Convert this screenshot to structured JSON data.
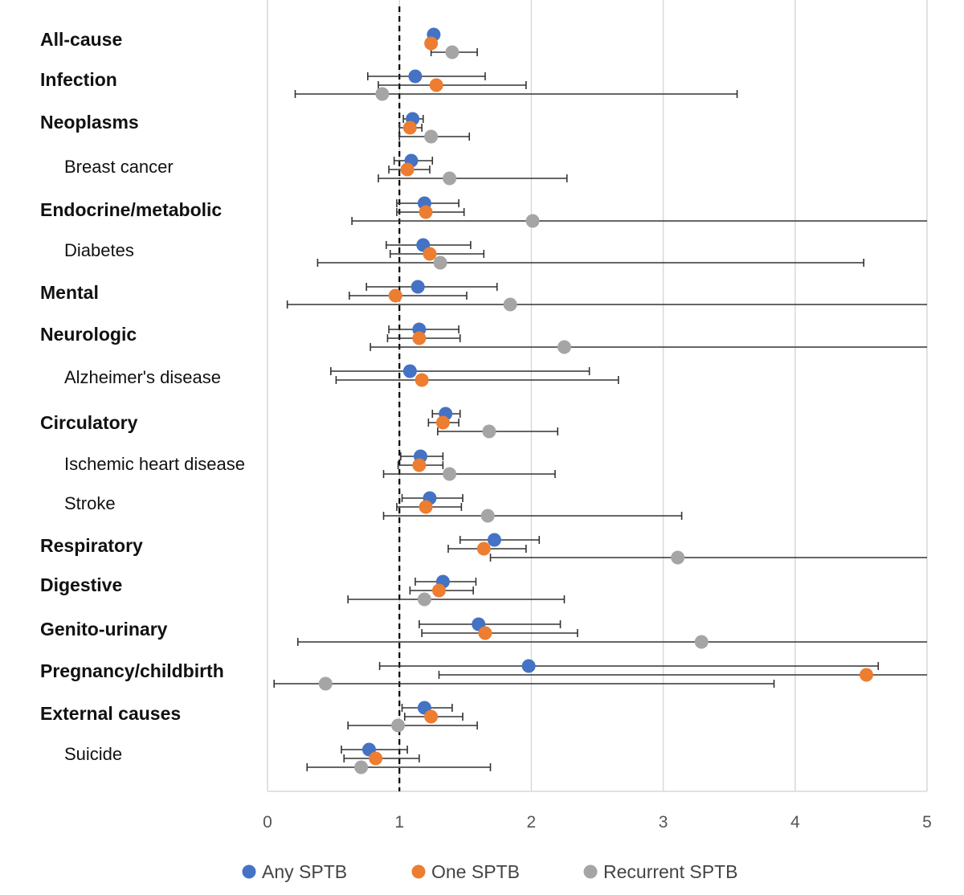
{
  "chart_data": {
    "type": "forest",
    "title": "",
    "xlabel": "",
    "ylabel": "",
    "xlim": [
      0,
      5
    ],
    "xticks": [
      "0",
      "1",
      "2",
      "3",
      "4",
      "5"
    ],
    "reference_line": 1,
    "grid": "vertical",
    "legend_position": "bottom",
    "series": [
      {
        "name": "Any SPTB",
        "color": "#4472c4"
      },
      {
        "name": "One SPTB",
        "color": "#ed7d31"
      },
      {
        "name": "Recurrent SPTB",
        "color": "#a5a5a5"
      }
    ],
    "categories": [
      {
        "label": "All-cause",
        "bold": true,
        "indent": 0,
        "rows": [
          {
            "est": 1.26,
            "lo": null,
            "hi": null
          },
          {
            "est": 1.24,
            "lo": null,
            "hi": null
          },
          {
            "est": 1.4,
            "lo": 1.24,
            "hi": 1.59
          }
        ]
      },
      {
        "label": "Infection",
        "bold": true,
        "indent": 0,
        "rows": [
          {
            "est": 1.12,
            "lo": 0.76,
            "hi": 1.65
          },
          {
            "est": 1.28,
            "lo": 0.84,
            "hi": 1.96
          },
          {
            "est": 0.87,
            "lo": 0.21,
            "hi": 3.56
          }
        ]
      },
      {
        "label": "Neoplasms",
        "bold": true,
        "indent": 0,
        "rows": [
          {
            "est": 1.1,
            "lo": 1.03,
            "hi": 1.18
          },
          {
            "est": 1.08,
            "lo": 1.0,
            "hi": 1.17
          },
          {
            "est": 1.24,
            "lo": 1.0,
            "hi": 1.53
          }
        ]
      },
      {
        "label": "Breast cancer",
        "bold": false,
        "indent": 1,
        "rows": [
          {
            "est": 1.09,
            "lo": 0.96,
            "hi": 1.25
          },
          {
            "est": 1.06,
            "lo": 0.92,
            "hi": 1.23
          },
          {
            "est": 1.38,
            "lo": 0.84,
            "hi": 2.27
          }
        ]
      },
      {
        "label": "Endocrine/metabolic",
        "bold": true,
        "indent": 0,
        "rows": [
          {
            "est": 1.19,
            "lo": 0.98,
            "hi": 1.45
          },
          {
            "est": 1.2,
            "lo": 0.98,
            "hi": 1.49
          },
          {
            "est": 2.01,
            "lo": 0.64,
            "hi": 6.3
          }
        ]
      },
      {
        "label": "Diabetes",
        "bold": false,
        "indent": 1,
        "rows": [
          {
            "est": 1.18,
            "lo": 0.9,
            "hi": 1.54
          },
          {
            "est": 1.23,
            "lo": 0.93,
            "hi": 1.64
          },
          {
            "est": 1.31,
            "lo": 0.38,
            "hi": 4.52
          }
        ]
      },
      {
        "label": "Mental",
        "bold": true,
        "indent": 0,
        "rows": [
          {
            "est": 1.14,
            "lo": 0.75,
            "hi": 1.74
          },
          {
            "est": 0.97,
            "lo": 0.62,
            "hi": 1.51
          },
          {
            "est": 1.84,
            "lo": 0.15,
            "hi": 22.0
          }
        ]
      },
      {
        "label": "Neurologic",
        "bold": true,
        "indent": 0,
        "rows": [
          {
            "est": 1.15,
            "lo": 0.92,
            "hi": 1.45
          },
          {
            "est": 1.15,
            "lo": 0.91,
            "hi": 1.46
          },
          {
            "est": 2.25,
            "lo": 0.78,
            "hi": 6.5
          }
        ]
      },
      {
        "label": "Alzheimer's disease",
        "bold": false,
        "indent": 1,
        "rows": [
          {
            "est": 1.08,
            "lo": 0.48,
            "hi": 2.44
          },
          {
            "est": 1.17,
            "lo": 0.52,
            "hi": 2.66
          },
          {
            "est": null,
            "lo": null,
            "hi": null
          }
        ]
      },
      {
        "label": "Circulatory",
        "bold": true,
        "indent": 0,
        "rows": [
          {
            "est": 1.35,
            "lo": 1.25,
            "hi": 1.46
          },
          {
            "est": 1.33,
            "lo": 1.22,
            "hi": 1.45
          },
          {
            "est": 1.68,
            "lo": 1.29,
            "hi": 2.2
          }
        ]
      },
      {
        "label": "Ischemic heart disease",
        "bold": false,
        "indent": 1,
        "rows": [
          {
            "est": 1.16,
            "lo": 1.01,
            "hi": 1.33
          },
          {
            "est": 1.15,
            "lo": 0.99,
            "hi": 1.33
          },
          {
            "est": 1.38,
            "lo": 0.88,
            "hi": 2.18
          }
        ]
      },
      {
        "label": "Stroke",
        "bold": false,
        "indent": 1,
        "rows": [
          {
            "est": 1.23,
            "lo": 1.02,
            "hi": 1.48
          },
          {
            "est": 1.2,
            "lo": 0.98,
            "hi": 1.47
          },
          {
            "est": 1.67,
            "lo": 0.88,
            "hi": 3.14
          }
        ]
      },
      {
        "label": "Respiratory",
        "bold": true,
        "indent": 0,
        "rows": [
          {
            "est": 1.72,
            "lo": 1.46,
            "hi": 2.06
          },
          {
            "est": 1.64,
            "lo": 1.37,
            "hi": 1.96
          },
          {
            "est": 3.11,
            "lo": 1.69,
            "hi": 5.7
          }
        ]
      },
      {
        "label": "Digestive",
        "bold": true,
        "indent": 0,
        "rows": [
          {
            "est": 1.33,
            "lo": 1.12,
            "hi": 1.58
          },
          {
            "est": 1.3,
            "lo": 1.08,
            "hi": 1.56
          },
          {
            "est": 1.19,
            "lo": 0.61,
            "hi": 2.25
          }
        ]
      },
      {
        "label": "Genito-urinary",
        "bold": true,
        "indent": 0,
        "rows": [
          {
            "est": 1.6,
            "lo": 1.15,
            "hi": 2.22
          },
          {
            "est": 1.65,
            "lo": 1.17,
            "hi": 2.35
          },
          {
            "est": 3.29,
            "lo": 0.23,
            "hi": 47.0
          }
        ]
      },
      {
        "label": "Pregnancy/childbirth",
        "bold": true,
        "indent": 0,
        "rows": [
          {
            "est": 1.98,
            "lo": 0.85,
            "hi": 4.63
          },
          {
            "est": 4.54,
            "lo": 1.3,
            "hi": 15.9
          },
          {
            "est": 0.44,
            "lo": 0.05,
            "hi": 3.84
          }
        ]
      },
      {
        "label": "External causes",
        "bold": true,
        "indent": 0,
        "rows": [
          {
            "est": 1.19,
            "lo": 1.02,
            "hi": 1.4
          },
          {
            "est": 1.24,
            "lo": 1.04,
            "hi": 1.48
          },
          {
            "est": 0.99,
            "lo": 0.61,
            "hi": 1.59
          }
        ]
      },
      {
        "label": "Suicide",
        "bold": false,
        "indent": 1,
        "rows": [
          {
            "est": 0.77,
            "lo": 0.56,
            "hi": 1.06
          },
          {
            "est": 0.82,
            "lo": 0.58,
            "hi": 1.15
          },
          {
            "est": 0.71,
            "lo": 0.3,
            "hi": 1.69
          }
        ]
      }
    ]
  }
}
